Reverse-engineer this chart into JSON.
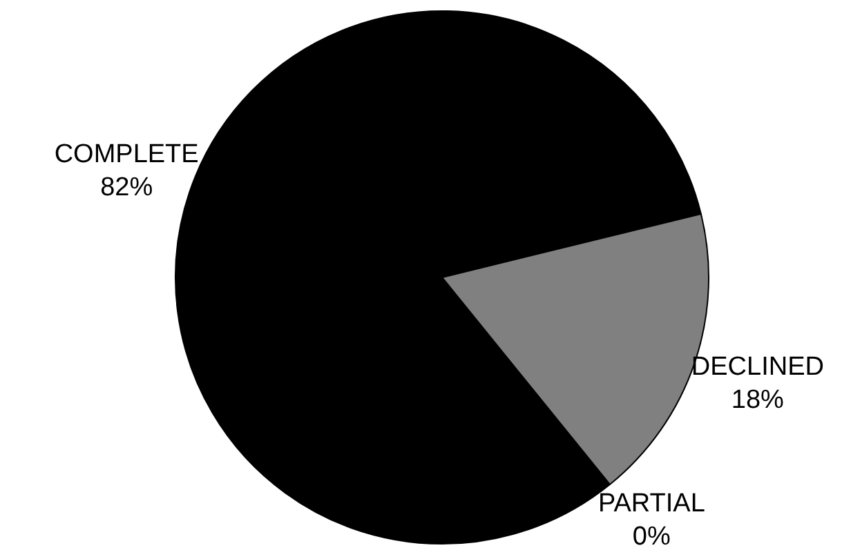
{
  "chart_data": {
    "type": "pie",
    "categories": [
      "COMPLETE",
      "DECLINED",
      "PARTIAL"
    ],
    "values": [
      82,
      18,
      0
    ],
    "colors": [
      "#000000",
      "#808080",
      "#ffffff"
    ],
    "value_labels": [
      "82%",
      "18%",
      "0%"
    ]
  }
}
